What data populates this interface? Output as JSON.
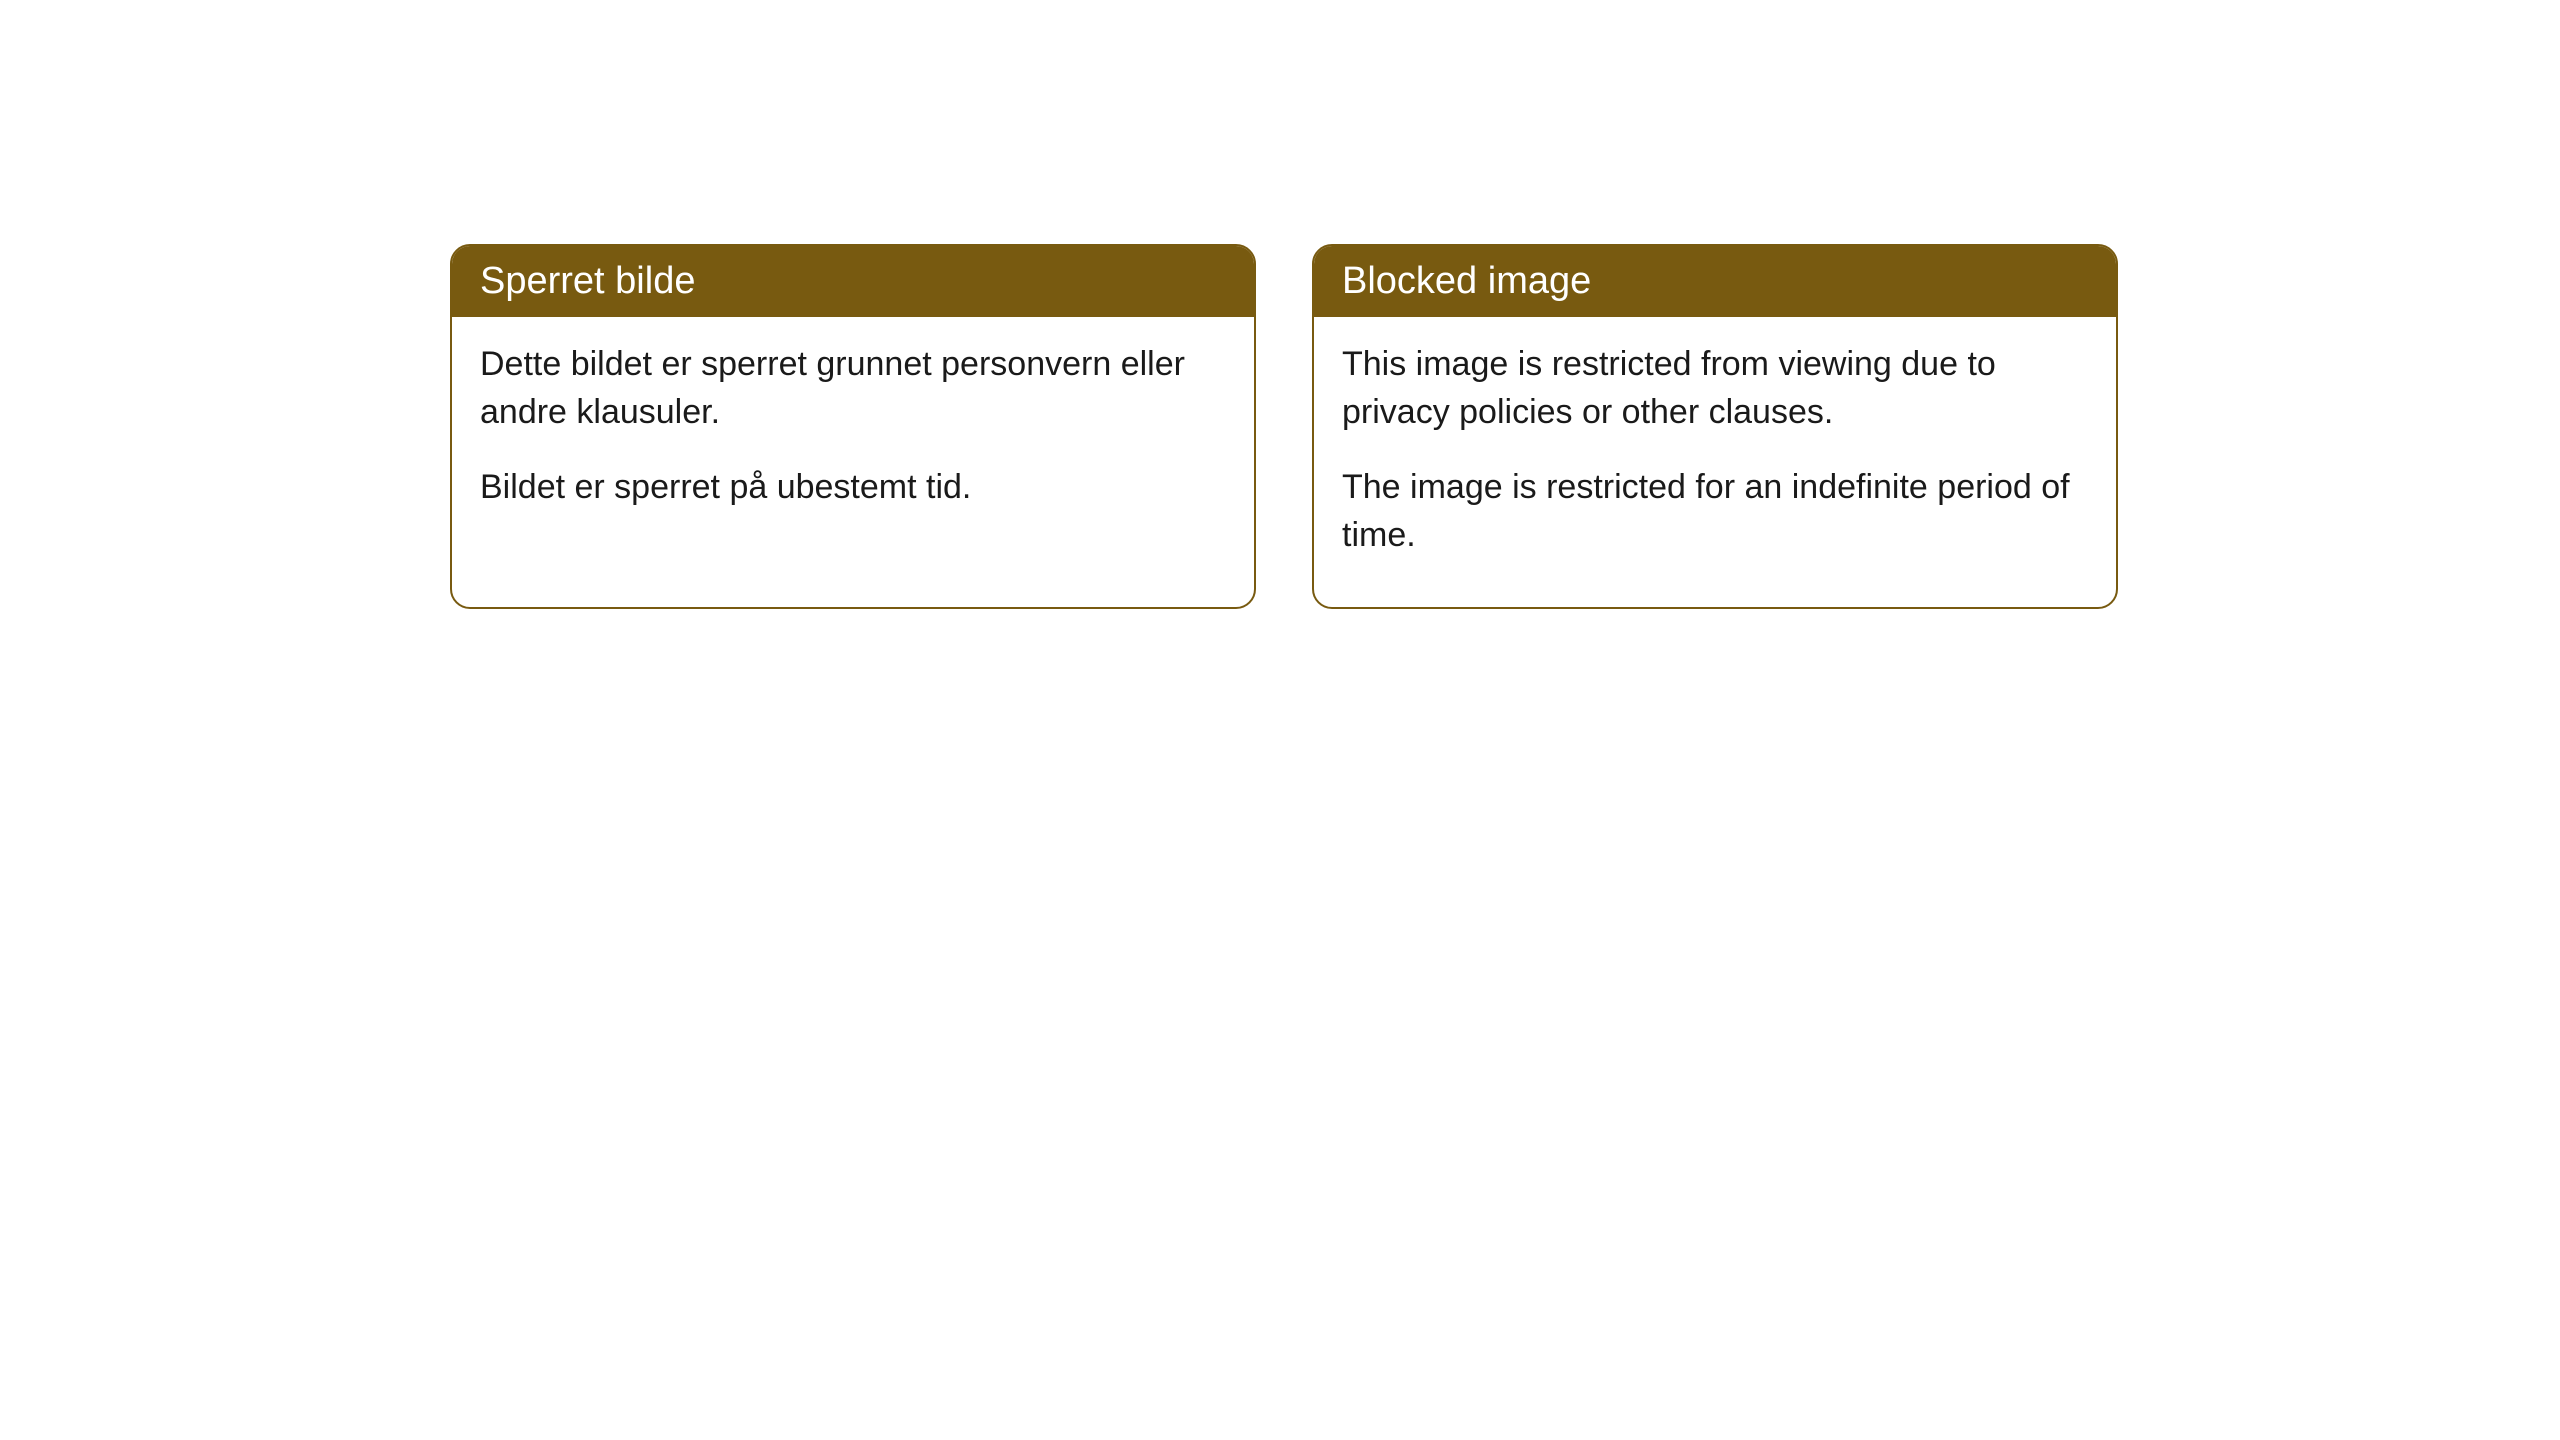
{
  "cards": [
    {
      "title": "Sperret bilde",
      "paragraph1": "Dette bildet er sperret grunnet personvern eller andre klausuler.",
      "paragraph2": "Bildet er sperret på ubestemt tid."
    },
    {
      "title": "Blocked image",
      "paragraph1": "This image is restricted from viewing due to privacy policies or other clauses.",
      "paragraph2": "The image is restricted for an indefinite period of time."
    }
  ],
  "style": {
    "header_bg_color": "#785a10",
    "header_text_color": "#ffffff",
    "border_color": "#785a10",
    "body_bg_color": "#ffffff",
    "body_text_color": "#1a1a1a",
    "border_radius": 20,
    "header_fontsize": 38,
    "body_fontsize": 34
  }
}
